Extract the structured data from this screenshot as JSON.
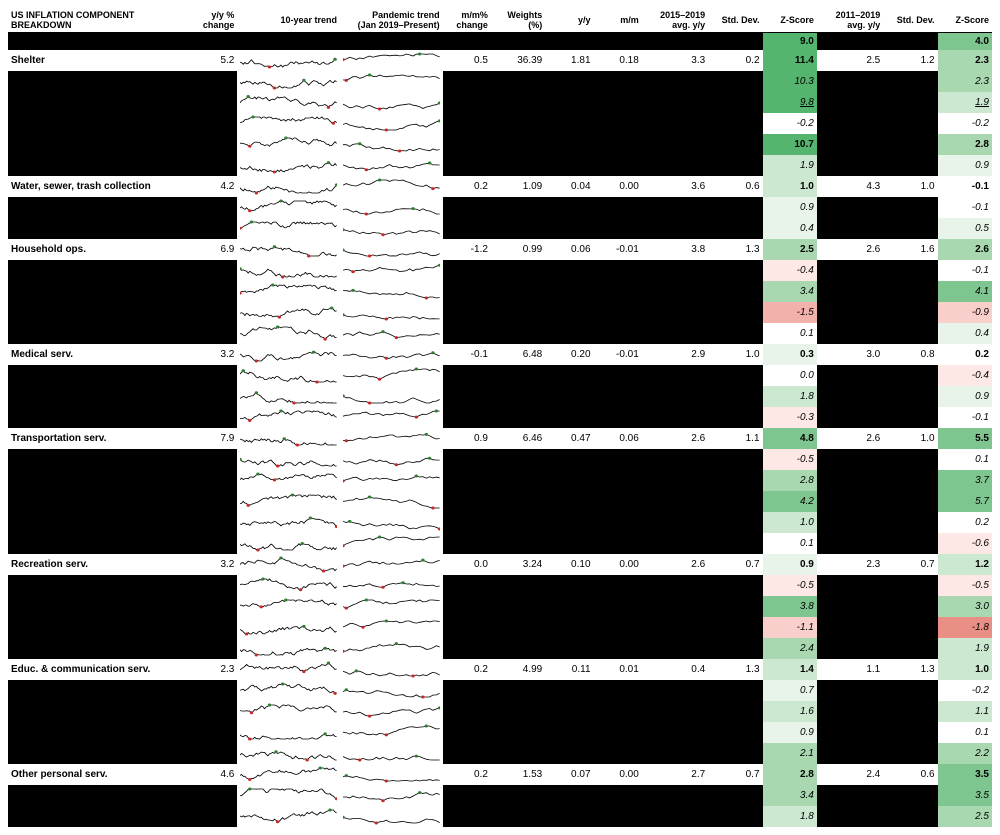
{
  "title": "US INFLATION COMPONENT BREAKDOWN",
  "headers": {
    "yy_change": "y/y %\nchange",
    "trend10": "10-year trend",
    "trend_pan": "Pandemic trend\n(Jan 2019–Present)",
    "mm_change": "m/m%\nchange",
    "weights": "Weights\n(%)",
    "yy": "y/y",
    "mm": "m/m",
    "avg1": "2015–2019\navg. y/y",
    "sd1": "Std. Dev.",
    "z1": "Z-Score",
    "avg2": "2011–2019\navg. y/y",
    "sd2": "Std. Dev.",
    "z2": "Z-Score"
  },
  "style": {
    "z_palette_pos": [
      "#ffffff",
      "#e8f4ea",
      "#cde8d1",
      "#a8d7b0",
      "#7fc58f",
      "#55b46e"
    ],
    "z_palette_neg": [
      "#ffffff",
      "#fde8e6",
      "#f8cfcb",
      "#f2b1aa",
      "#ea8f86"
    ],
    "spark_stroke": "#000000",
    "spark_hi": "#2e7d32",
    "spark_lo": "#c62828",
    "font_size": 10,
    "header_font_size": 9
  },
  "top_z": {
    "z1": 9.0,
    "z2": 4.0
  },
  "rows": [
    {
      "type": "main",
      "name": "Shelter",
      "yy": 5.2,
      "mm": 0.5,
      "wt": 36.39,
      "yyv": 1.81,
      "mmv": 0.18,
      "avg1": 3.3,
      "sd1": 0.2,
      "z1": 11.4,
      "avg2": 2.5,
      "sd2": 1.2,
      "z2": 2.3
    },
    {
      "type": "sub",
      "z1": 10.3,
      "z2": 2.3,
      "italic": true
    },
    {
      "type": "sub",
      "z1": 9.8,
      "z2": 1.9,
      "italic": true,
      "underline": true
    },
    {
      "type": "sub",
      "z1": -0.2,
      "z2": -0.2,
      "italic": true
    },
    {
      "type": "sub",
      "z1": 10.7,
      "z2": 2.8
    },
    {
      "type": "sub",
      "z1": 1.9,
      "z2": 0.9,
      "italic": true
    },
    {
      "type": "main",
      "name": "Water, sewer, trash collection",
      "yy": 4.2,
      "mm": 0.2,
      "wt": 1.09,
      "yyv": 0.04,
      "mmv": 0.0,
      "avg1": 3.6,
      "sd1": 0.6,
      "z1": 1.0,
      "avg2": 4.3,
      "sd2": 1.0,
      "z2": -0.1
    },
    {
      "type": "sub",
      "z1": 0.9,
      "z2": -0.1,
      "italic": true
    },
    {
      "type": "sub",
      "z1": 0.4,
      "z2": 0.5,
      "italic": true
    },
    {
      "type": "main",
      "name": "Household ops.",
      "yy": 6.9,
      "mm": -1.2,
      "wt": 0.99,
      "yyv": 0.06,
      "mmv": -0.01,
      "avg1": 3.8,
      "sd1": 1.3,
      "z1": 2.5,
      "avg2": 2.6,
      "sd2": 1.6,
      "z2": 2.6
    },
    {
      "type": "sub",
      "z1": -0.4,
      "z2": -0.1,
      "italic": true
    },
    {
      "type": "sub",
      "z1": 3.4,
      "z2": 4.1,
      "italic": true
    },
    {
      "type": "sub",
      "z1": -1.5,
      "z2": -0.9,
      "italic": true
    },
    {
      "type": "sub",
      "z1": 0.1,
      "z2": 0.4,
      "italic": true
    },
    {
      "type": "main",
      "name": "Medical serv.",
      "yy": 3.2,
      "mm": -0.1,
      "wt": 6.48,
      "yyv": 0.2,
      "mmv": -0.01,
      "avg1": 2.9,
      "sd1": 1.0,
      "z1": 0.3,
      "avg2": 3.0,
      "sd2": 0.8,
      "z2": 0.2
    },
    {
      "type": "sub",
      "z1": 0.0,
      "z2": -0.4,
      "italic": true
    },
    {
      "type": "sub",
      "z1": 1.8,
      "z2": 0.9,
      "italic": true
    },
    {
      "type": "sub",
      "z1": -0.3,
      "z2": -0.1,
      "italic": true
    },
    {
      "type": "main",
      "name": "Transportation serv.",
      "yy": 7.9,
      "mm": 0.9,
      "wt": 6.46,
      "yyv": 0.47,
      "mmv": 0.06,
      "avg1": 2.6,
      "sd1": 1.1,
      "z1": 4.8,
      "avg2": 2.6,
      "sd2": 1.0,
      "z2": 5.5
    },
    {
      "type": "sub",
      "z1": -0.5,
      "z2": 0.1,
      "italic": true
    },
    {
      "type": "sub",
      "z1": 2.8,
      "z2": 3.7,
      "italic": true
    },
    {
      "type": "sub",
      "z1": 4.2,
      "z2": 5.7,
      "italic": true
    },
    {
      "type": "sub",
      "z1": 1.0,
      "z2": 0.2,
      "italic": true
    },
    {
      "type": "sub",
      "z1": 0.1,
      "z2": -0.6,
      "italic": true
    },
    {
      "type": "main",
      "name": "Recreation serv.",
      "yy": 3.2,
      "mm": 0.0,
      "wt": 3.24,
      "yyv": 0.1,
      "mmv": 0.0,
      "avg1": 2.6,
      "sd1": 0.7,
      "z1": 0.9,
      "avg2": 2.3,
      "sd2": 0.7,
      "z2": 1.2
    },
    {
      "type": "sub",
      "z1": -0.5,
      "z2": -0.5,
      "italic": true
    },
    {
      "type": "sub",
      "z1": 3.8,
      "z2": 3.0,
      "italic": true
    },
    {
      "type": "sub",
      "z1": -1.1,
      "z2": -1.8,
      "italic": true
    },
    {
      "type": "sub",
      "z1": 2.4,
      "z2": 1.9,
      "italic": true
    },
    {
      "type": "main",
      "name": "Educ. & communication serv.",
      "yy": 2.3,
      "mm": 0.2,
      "wt": 4.99,
      "yyv": 0.11,
      "mmv": 0.01,
      "avg1": 0.4,
      "sd1": 1.3,
      "z1": 1.4,
      "avg2": 1.1,
      "sd2": 1.3,
      "z2": 1.0
    },
    {
      "type": "sub",
      "z1": 0.7,
      "z2": -0.2,
      "italic": true
    },
    {
      "type": "sub",
      "z1": 1.6,
      "z2": 1.1,
      "italic": true
    },
    {
      "type": "sub",
      "z1": 0.9,
      "z2": 0.1,
      "italic": true
    },
    {
      "type": "sub",
      "z1": 2.1,
      "z2": 2.2,
      "italic": true
    },
    {
      "type": "main",
      "name": "Other personal serv.",
      "yy": 4.6,
      "mm": 0.2,
      "wt": 1.53,
      "yyv": 0.07,
      "mmv": 0.0,
      "avg1": 2.7,
      "sd1": 0.7,
      "z1": 2.8,
      "avg2": 2.4,
      "sd2": 0.6,
      "z2": 3.5
    },
    {
      "type": "sub",
      "z1": 3.4,
      "z2": 3.5,
      "italic": true
    },
    {
      "type": "sub",
      "z1": 1.8,
      "z2": 2.5,
      "italic": true
    }
  ]
}
